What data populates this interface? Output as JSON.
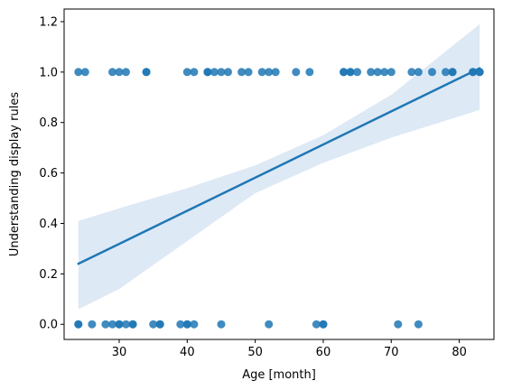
{
  "chart_data": {
    "type": "scatter",
    "title": "",
    "xlabel": "Age [month]",
    "ylabel": "Understanding display rules",
    "xlim": [
      21.9,
      85.1
    ],
    "ylim": [
      -0.06,
      1.25
    ],
    "xticks": [
      30,
      40,
      50,
      60,
      70,
      80
    ],
    "yticks": [
      0.0,
      0.2,
      0.4,
      0.6,
      0.8,
      1.0,
      1.2
    ],
    "xtick_labels": [
      "30",
      "40",
      "50",
      "60",
      "70",
      "80"
    ],
    "ytick_labels": [
      "0.0",
      "0.2",
      "0.4",
      "0.6",
      "0.8",
      "1.0",
      "1.2"
    ],
    "grid": false,
    "legend": "none",
    "colors": {
      "points": "#1f77b4",
      "line": "#1f77b4",
      "band": "#c6dbef"
    },
    "points": {
      "x": [
        24,
        25,
        29,
        30,
        31,
        34,
        34,
        40,
        41,
        43,
        43,
        44,
        45,
        46,
        48,
        49,
        51,
        52,
        53,
        56,
        58,
        63,
        63,
        64,
        64,
        65,
        67,
        68,
        69,
        70,
        73,
        74,
        76,
        78,
        79,
        79,
        82,
        82,
        83,
        83,
        24,
        24,
        26,
        28,
        29,
        30,
        30,
        31,
        32,
        32,
        35,
        36,
        36,
        39,
        40,
        40,
        41,
        45,
        52,
        59,
        60,
        60,
        71,
        74
      ],
      "y": [
        1,
        1,
        1,
        1,
        1,
        1,
        1,
        1,
        1,
        1,
        1,
        1,
        1,
        1,
        1,
        1,
        1,
        1,
        1,
        1,
        1,
        1,
        1,
        1,
        1,
        1,
        1,
        1,
        1,
        1,
        1,
        1,
        1,
        1,
        1,
        1,
        1,
        1,
        1,
        1,
        0,
        0,
        0,
        0,
        0,
        0,
        0,
        0,
        0,
        0,
        0,
        0,
        0,
        0,
        0,
        0,
        0,
        0,
        0,
        0,
        0,
        0,
        0,
        0
      ]
    },
    "regression": {
      "x": [
        24,
        83
      ],
      "y": [
        0.24,
        1.015
      ]
    },
    "confidence_band": {
      "x": [
        24,
        30,
        40,
        50,
        60,
        70,
        83
      ],
      "upper": [
        0.41,
        0.46,
        0.54,
        0.63,
        0.75,
        0.91,
        1.19
      ],
      "lower": [
        0.06,
        0.14,
        0.33,
        0.52,
        0.64,
        0.74,
        0.85
      ]
    }
  }
}
